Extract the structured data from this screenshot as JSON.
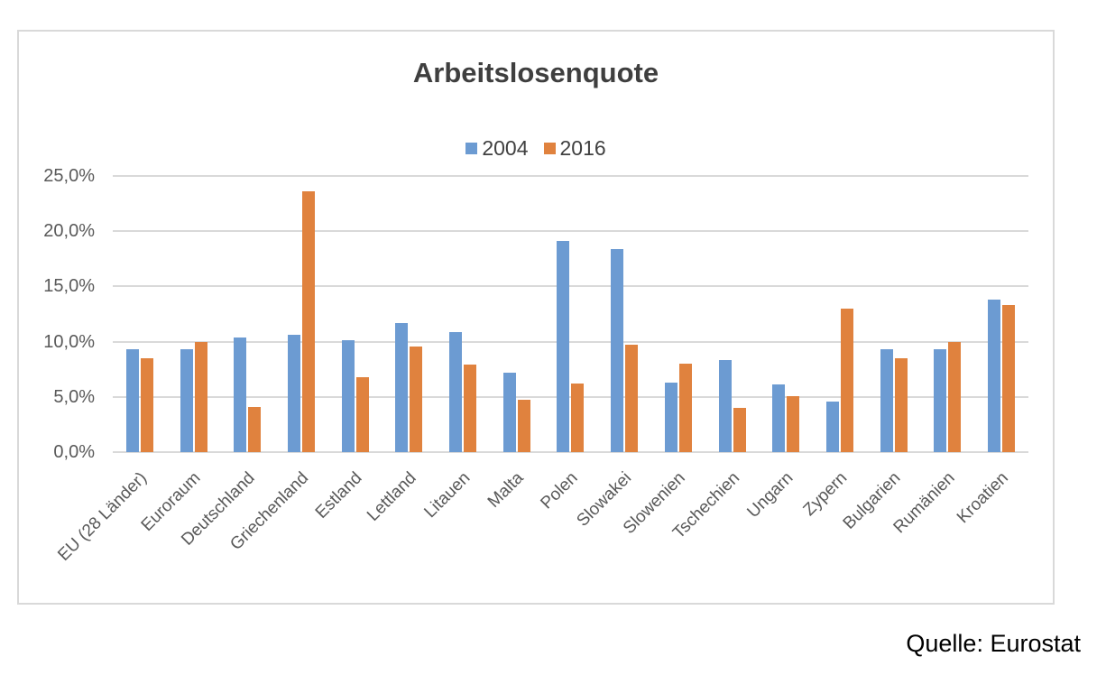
{
  "chart_data": {
    "type": "bar",
    "title": "Arbeitslosenquote",
    "categories": [
      "EU (28 Länder)",
      "Euroraum",
      "Deutschland",
      "Griechenland",
      "Estland",
      "Lettland",
      "Litauen",
      "Malta",
      "Polen",
      "Slowakei",
      "Slowenien",
      "Tschechien",
      "Ungarn",
      "Zypern",
      "Bulgarien",
      "Rumänien",
      "Kroatien"
    ],
    "series": [
      {
        "name": "2004",
        "color": "#6c9bd2",
        "values": [
          9.3,
          9.3,
          10.4,
          10.6,
          10.1,
          11.7,
          10.9,
          7.2,
          19.1,
          18.4,
          6.3,
          8.3,
          6.1,
          4.6,
          9.3,
          9.3,
          13.8
        ]
      },
      {
        "name": "2016",
        "color": "#e0823e",
        "values": [
          8.5,
          10.0,
          4.1,
          23.6,
          6.8,
          9.6,
          7.9,
          4.7,
          6.2,
          9.7,
          8.0,
          4.0,
          5.1,
          13.0,
          8.5,
          10.0,
          13.3
        ]
      }
    ],
    "ylabel": "",
    "xlabel": "",
    "ylim": [
      0,
      25
    ],
    "ytick_step": 5,
    "ytick_labels": [
      "0,0%",
      "5,0%",
      "10,0%",
      "15,0%",
      "20,0%",
      "25,0%"
    ],
    "grid": true,
    "legend_position": "top-center",
    "value_format": "percent-comma-decimal"
  },
  "source_note": "Quelle: Eurostat",
  "colors": {
    "series_2004": "#6c9bd2",
    "series_2016": "#e0823e",
    "gridline": "#d9d9d9",
    "frame_border": "#d9d9d9",
    "title_text": "#3f3f3f",
    "axis_text": "#595959",
    "background": "#ffffff"
  }
}
